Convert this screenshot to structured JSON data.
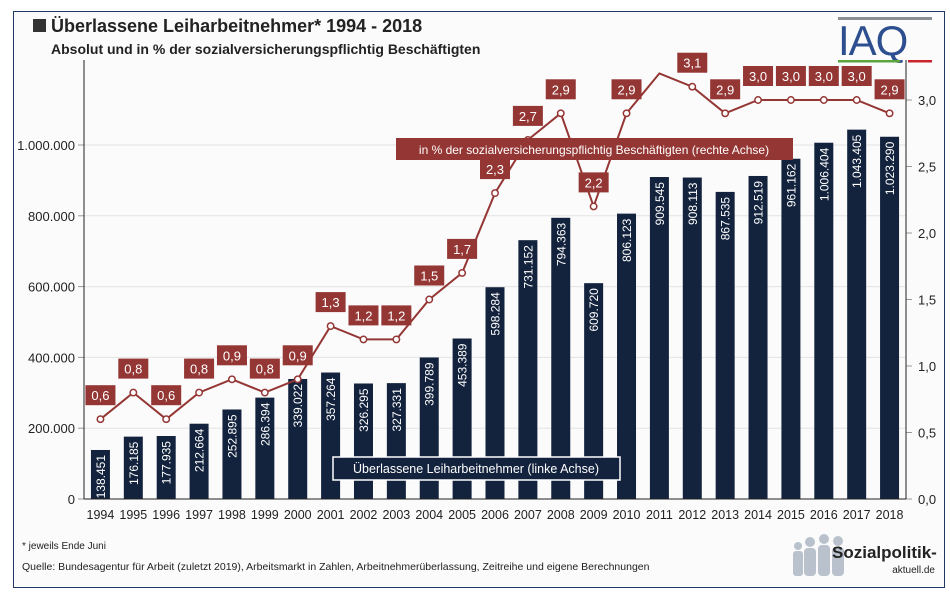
{
  "header": {
    "title": "Überlassene Leiharbeitnehmer* 1994 - 2018",
    "subtitle": "Absolut und in % der sozialversicherungspflichtig Beschäftigten",
    "logo_text": "IAQ"
  },
  "footer": {
    "note": "* jeweils Ende Juni",
    "source": "Quelle: Bundesagentur für Arbeit (zuletzt 2019), Arbeitsmarkt in Zahlen, Arbeitnehmerüberlassung, Zeitreihe und eigene Berechnungen",
    "brand_line1": "Sozialpolitik-",
    "brand_line2": "aktuell.de"
  },
  "colors": {
    "bar": "#13233d",
    "line": "#943634",
    "label_bg": "#943634"
  },
  "chart_data": {
    "type": "bar",
    "title": "Überlassene Leiharbeitnehmer* 1994 - 2018",
    "subtitle": "Absolut und in % der sozialversicherungspflichtig Beschäftigten",
    "categories": [
      "1994",
      "1995",
      "1996",
      "1997",
      "1998",
      "1999",
      "2000",
      "2001",
      "2002",
      "2003",
      "2004",
      "2005",
      "2006",
      "2007",
      "2008",
      "2009",
      "2010",
      "2011",
      "2012",
      "2013",
      "2014",
      "2015",
      "2016",
      "2017",
      "2018"
    ],
    "series": [
      {
        "name": "Überlassene Leiharbeitnehmer (linke Achse)",
        "type": "bar",
        "axis": "left",
        "values": [
          138451,
          176185,
          177935,
          212664,
          252895,
          286394,
          339022,
          357264,
          326295,
          327331,
          399789,
          453389,
          598284,
          731152,
          794363,
          609720,
          806123,
          909545,
          908113,
          867535,
          912519,
          961162,
          1006404,
          1043405,
          1023290
        ],
        "labels": [
          "138.451",
          "176.185",
          "177.935",
          "212.664",
          "252.895",
          "286.394",
          "339.022",
          "357.264",
          "326.295",
          "327.331",
          "399.789",
          "453.389",
          "598.284",
          "731.152",
          "794.363",
          "609.720",
          "806.123",
          "909.545",
          "908.113",
          "867.535",
          "912.519",
          "961.162",
          "1.006.404",
          "1.043.405",
          "1.023.290"
        ]
      },
      {
        "name": "in % der sozialversicherungspflichtig Beschäftigten (rechte Achse)",
        "type": "line",
        "axis": "right",
        "values": [
          0.6,
          0.8,
          0.6,
          0.8,
          0.9,
          0.8,
          0.9,
          1.3,
          1.2,
          1.2,
          1.5,
          1.7,
          2.3,
          2.7,
          2.9,
          2.2,
          2.9,
          3.2,
          3.1,
          2.9,
          3.0,
          3.0,
          3.0,
          3.0,
          2.9
        ],
        "labels": [
          "0,6",
          "0,8",
          "0,6",
          "0,8",
          "0,9",
          "0,8",
          "0,9",
          "1,3",
          "1,2",
          "1,2",
          "1,5",
          "1,7",
          "2,3",
          "2,7",
          "2,9",
          "2,2",
          "2,9",
          "",
          "3,1",
          "2,9",
          "3,0",
          "3,0",
          "3,0",
          "3,0",
          "2,9"
        ]
      }
    ],
    "left_axis": {
      "ylim": [
        0,
        1100000
      ],
      "ticks": [
        0,
        200000,
        400000,
        600000,
        800000,
        1000000
      ],
      "tick_labels": [
        "0",
        "200.000",
        "400.000",
        "600.000",
        "800.000",
        "1.000.000"
      ]
    },
    "right_axis": {
      "ylim": [
        0,
        3.3
      ],
      "ticks": [
        0,
        0.5,
        1,
        1.5,
        2,
        2.5,
        3
      ],
      "tick_labels": [
        "0,0",
        "0,5",
        "1,0",
        "1,5",
        "2,0",
        "2,5",
        "3,0"
      ]
    },
    "legend": {
      "bar_label": "Überlassene Leiharbeitnehmer (linke Achse)",
      "line_label": "in % der sozialversicherungspflichtig Beschäftigten (rechte Achse)"
    },
    "grid": true
  }
}
